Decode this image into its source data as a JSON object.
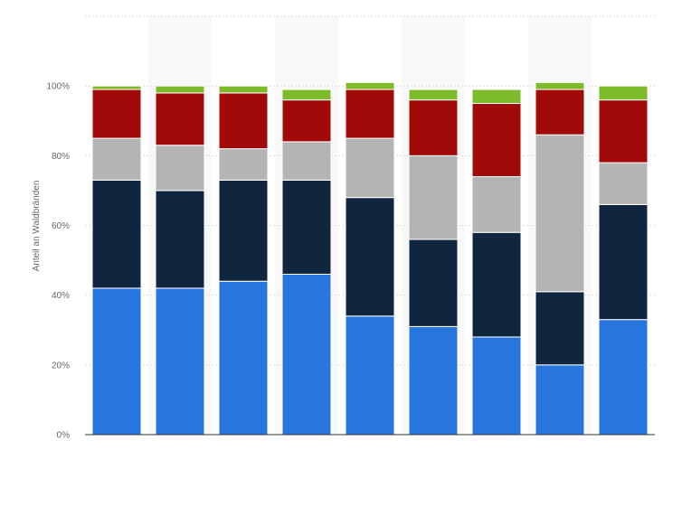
{
  "chart_data": {
    "type": "bar",
    "stacked": true,
    "title": "",
    "xlabel": "",
    "ylabel": "Anteil an Waldbränden",
    "ylim": [
      0,
      120
    ],
    "y_ticks": [
      0,
      20,
      40,
      60,
      80,
      100
    ],
    "y_tick_format": "{v}%",
    "grid": true,
    "categories": [
      "",
      "",
      "",
      "",
      "",
      "",
      "",
      "",
      ""
    ],
    "series": [
      {
        "color": "#2876dd",
        "values": [
          42,
          42,
          44,
          46,
          34,
          31,
          28,
          20,
          33
        ]
      },
      {
        "color": "#10263f",
        "values": [
          31,
          28,
          29,
          27,
          34,
          25,
          30,
          21,
          33
        ]
      },
      {
        "color": "#b4b4b4",
        "values": [
          12,
          13,
          9,
          11,
          17,
          24,
          16,
          45,
          12
        ]
      },
      {
        "color": "#a20a0a",
        "values": [
          14,
          15,
          16,
          12,
          14,
          16,
          21,
          13,
          18
        ]
      },
      {
        "color": "#7ebb2a",
        "values": [
          1,
          2,
          2,
          3,
          2,
          3,
          4,
          2,
          4
        ]
      }
    ]
  }
}
